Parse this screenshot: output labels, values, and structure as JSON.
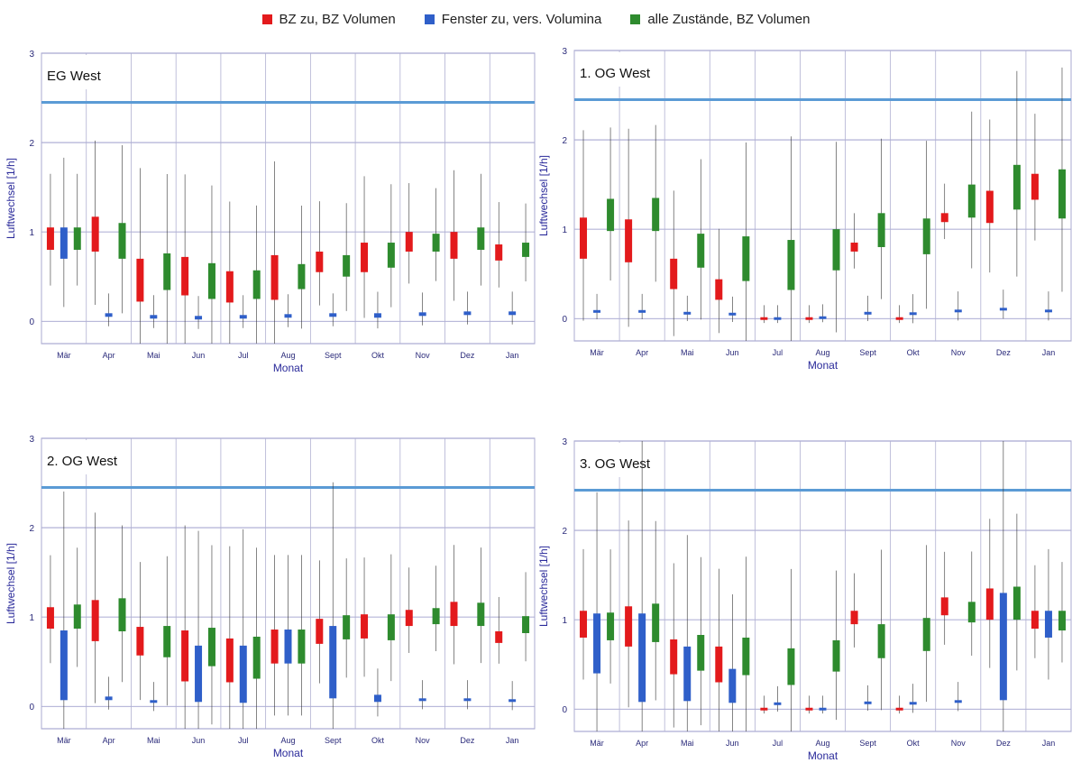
{
  "legend": {
    "items": [
      {
        "label": "BZ zu, BZ Volumen",
        "color": "#e31a1c"
      },
      {
        "label": "Fenster zu, vers. Volumina",
        "color": "#2f5fc9"
      },
      {
        "label": "alle Zustände, BZ Volumen",
        "color": "#2e8b2e"
      }
    ]
  },
  "reference_line": {
    "value": 2.45,
    "color": "#5b9bd5"
  },
  "chart_data": [
    {
      "type": "box",
      "panel_title": "EG West",
      "xlabel": "Monat",
      "ylabel": "Luftwechsel [1/h]",
      "ylim": [
        -0.25,
        3
      ],
      "yticks": [
        0,
        1,
        2,
        3
      ],
      "categories": [
        "Mär",
        "Apr",
        "Mai",
        "Jun",
        "Jul",
        "Aug",
        "Sept",
        "Okt",
        "Nov",
        "Dez",
        "Jan"
      ],
      "series": [
        {
          "name": "BZ zu, BZ Volumen",
          "color": "#e31a1c",
          "boxes": [
            [
              0.8,
              1.05
            ],
            [
              0.78,
              1.17
            ],
            [
              0.22,
              0.7
            ],
            [
              0.29,
              0.72
            ],
            [
              0.21,
              0.56
            ],
            [
              0.24,
              0.74
            ],
            [
              0.55,
              0.78
            ],
            [
              0.55,
              0.88
            ],
            [
              0.78,
              1.0
            ],
            [
              0.7,
              1.0
            ],
            [
              0.68,
              0.86
            ]
          ]
        },
        {
          "name": "Fenster zu, vers. Volumina",
          "color": "#2f5fc9",
          "boxes": [
            [
              0.7,
              1.05
            ],
            [
              0.05,
              0.09
            ],
            [
              0.03,
              0.07
            ],
            [
              0.02,
              0.06
            ],
            [
              0.03,
              0.07
            ],
            [
              0.04,
              0.08
            ],
            [
              0.05,
              0.09
            ],
            [
              0.04,
              0.09
            ],
            [
              0.06,
              0.1
            ],
            [
              0.07,
              0.11
            ],
            [
              0.07,
              0.11
            ]
          ]
        },
        {
          "name": "alle Zustände, BZ Volumen",
          "color": "#2e8b2e",
          "boxes": [
            [
              0.8,
              1.05
            ],
            [
              0.7,
              1.1
            ],
            [
              0.35,
              0.76
            ],
            [
              0.25,
              0.65
            ],
            [
              0.25,
              0.57
            ],
            [
              0.36,
              0.64
            ],
            [
              0.5,
              0.74
            ],
            [
              0.6,
              0.88
            ],
            [
              0.78,
              0.98
            ],
            [
              0.8,
              1.05
            ],
            [
              0.72,
              0.88
            ]
          ]
        }
      ]
    },
    {
      "type": "box",
      "panel_title": "1. OG West",
      "xlabel": "Monat",
      "ylabel": "Luftwechsel [1/h]",
      "ylim": [
        -0.25,
        3
      ],
      "yticks": [
        0,
        1,
        2,
        3
      ],
      "categories": [
        "Mär",
        "Apr",
        "Mai",
        "Jun",
        "Jul",
        "Aug",
        "Sept",
        "Okt",
        "Nov",
        "Dez",
        "Jan"
      ],
      "series": [
        {
          "name": "BZ zu, BZ Volumen",
          "color": "#e31a1c",
          "boxes": [
            [
              0.67,
              1.13
            ],
            [
              0.63,
              1.11
            ],
            [
              0.33,
              0.67
            ],
            [
              0.21,
              0.44
            ],
            [
              0.0,
              0.0
            ],
            [
              0.0,
              0.0
            ],
            [
              0.75,
              0.85
            ],
            [
              0.0,
              0.0
            ],
            [
              1.08,
              1.18
            ],
            [
              1.07,
              1.43
            ],
            [
              1.33,
              1.62
            ]
          ]
        },
        {
          "name": "Fenster zu, vers. Volumina",
          "color": "#2f5fc9",
          "boxes": [
            [
              0.07,
              0.09
            ],
            [
              0.07,
              0.09
            ],
            [
              0.05,
              0.07
            ],
            [
              0.04,
              0.06
            ],
            [
              0.0,
              0.0
            ],
            [
              0.01,
              0.01
            ],
            [
              0.05,
              0.07
            ],
            [
              0.04,
              0.07
            ],
            [
              0.07,
              0.1
            ],
            [
              0.09,
              0.12
            ],
            [
              0.07,
              0.1
            ]
          ]
        },
        {
          "name": "alle Zustände, BZ Volumen",
          "color": "#2e8b2e",
          "boxes": [
            [
              0.98,
              1.34
            ],
            [
              0.98,
              1.35
            ],
            [
              0.57,
              0.95
            ],
            [
              0.42,
              0.92
            ],
            [
              0.32,
              0.88
            ],
            [
              0.54,
              1.0
            ],
            [
              0.8,
              1.18
            ],
            [
              0.72,
              1.12
            ],
            [
              1.13,
              1.5
            ],
            [
              1.22,
              1.72
            ],
            [
              1.12,
              1.67
            ]
          ]
        }
      ]
    },
    {
      "type": "box",
      "panel_title": "2. OG West",
      "xlabel": "Monat",
      "ylabel": "Luftwechsel [1/h]",
      "ylim": [
        -0.25,
        3
      ],
      "yticks": [
        0,
        1,
        2,
        3
      ],
      "categories": [
        "Mär",
        "Apr",
        "Mai",
        "Jun",
        "Jul",
        "Aug",
        "Sept",
        "Okt",
        "Nov",
        "Dez",
        "Jan"
      ],
      "series": [
        {
          "name": "BZ zu, BZ Volumen",
          "color": "#e31a1c",
          "boxes": [
            [
              0.87,
              1.11
            ],
            [
              0.73,
              1.19
            ],
            [
              0.57,
              0.89
            ],
            [
              0.28,
              0.85
            ],
            [
              0.27,
              0.76
            ],
            [
              0.48,
              0.86
            ],
            [
              0.7,
              0.98
            ],
            [
              0.76,
              1.03
            ],
            [
              0.9,
              1.08
            ],
            [
              0.9,
              1.17
            ],
            [
              0.71,
              0.84
            ]
          ]
        },
        {
          "name": "Fenster zu, vers. Volumina",
          "color": "#2f5fc9",
          "boxes": [
            [
              0.07,
              0.85
            ],
            [
              0.07,
              0.11
            ],
            [
              0.04,
              0.07
            ],
            [
              0.05,
              0.68
            ],
            [
              0.04,
              0.68
            ],
            [
              0.48,
              0.86
            ],
            [
              0.09,
              0.9
            ],
            [
              0.05,
              0.13
            ],
            [
              0.06,
              0.09
            ],
            [
              0.06,
              0.09
            ],
            [
              0.05,
              0.08
            ]
          ]
        },
        {
          "name": "alle Zustände, BZ Volumen",
          "color": "#2e8b2e",
          "boxes": [
            [
              0.87,
              1.14
            ],
            [
              0.84,
              1.21
            ],
            [
              0.55,
              0.9
            ],
            [
              0.45,
              0.88
            ],
            [
              0.31,
              0.78
            ],
            [
              0.48,
              0.86
            ],
            [
              0.75,
              1.02
            ],
            [
              0.74,
              1.03
            ],
            [
              0.92,
              1.1
            ],
            [
              0.9,
              1.16
            ],
            [
              0.82,
              1.01
            ]
          ]
        }
      ]
    },
    {
      "type": "box",
      "panel_title": "3. OG West",
      "xlabel": "Monat",
      "ylabel": "Luftwechsel [1/h]",
      "ylim": [
        -0.25,
        3
      ],
      "yticks": [
        0,
        1,
        2,
        3
      ],
      "categories": [
        "Mär",
        "Apr",
        "Mai",
        "Jun",
        "Jul",
        "Aug",
        "Sept",
        "Okt",
        "Nov",
        "Dez",
        "Jan"
      ],
      "series": [
        {
          "name": "BZ zu, BZ Volumen",
          "color": "#e31a1c",
          "boxes": [
            [
              0.8,
              1.1
            ],
            [
              0.7,
              1.15
            ],
            [
              0.39,
              0.78
            ],
            [
              0.3,
              0.7
            ],
            [
              0.0,
              0.0
            ],
            [
              0.0,
              0.0
            ],
            [
              0.95,
              1.1
            ],
            [
              0.0,
              0.0
            ],
            [
              1.05,
              1.25
            ],
            [
              1.0,
              1.35
            ],
            [
              0.9,
              1.1
            ]
          ]
        },
        {
          "name": "Fenster zu, vers. Volumina",
          "color": "#2f5fc9",
          "boxes": [
            [
              0.4,
              1.07
            ],
            [
              0.08,
              1.07
            ],
            [
              0.09,
              0.7
            ],
            [
              0.07,
              0.45
            ],
            [
              0.05,
              0.07
            ],
            [
              0.0,
              0.0
            ],
            [
              0.06,
              0.08
            ],
            [
              0.05,
              0.08
            ],
            [
              0.07,
              0.1
            ],
            [
              0.1,
              1.3
            ],
            [
              0.8,
              1.1
            ]
          ]
        },
        {
          "name": "alle Zustände, BZ Volumen",
          "color": "#2e8b2e",
          "boxes": [
            [
              0.77,
              1.08
            ],
            [
              0.75,
              1.18
            ],
            [
              0.43,
              0.83
            ],
            [
              0.38,
              0.8
            ],
            [
              0.27,
              0.68
            ],
            [
              0.42,
              0.77
            ],
            [
              0.57,
              0.95
            ],
            [
              0.65,
              1.02
            ],
            [
              0.97,
              1.2
            ],
            [
              1.0,
              1.37
            ],
            [
              0.88,
              1.1
            ]
          ]
        }
      ]
    }
  ]
}
